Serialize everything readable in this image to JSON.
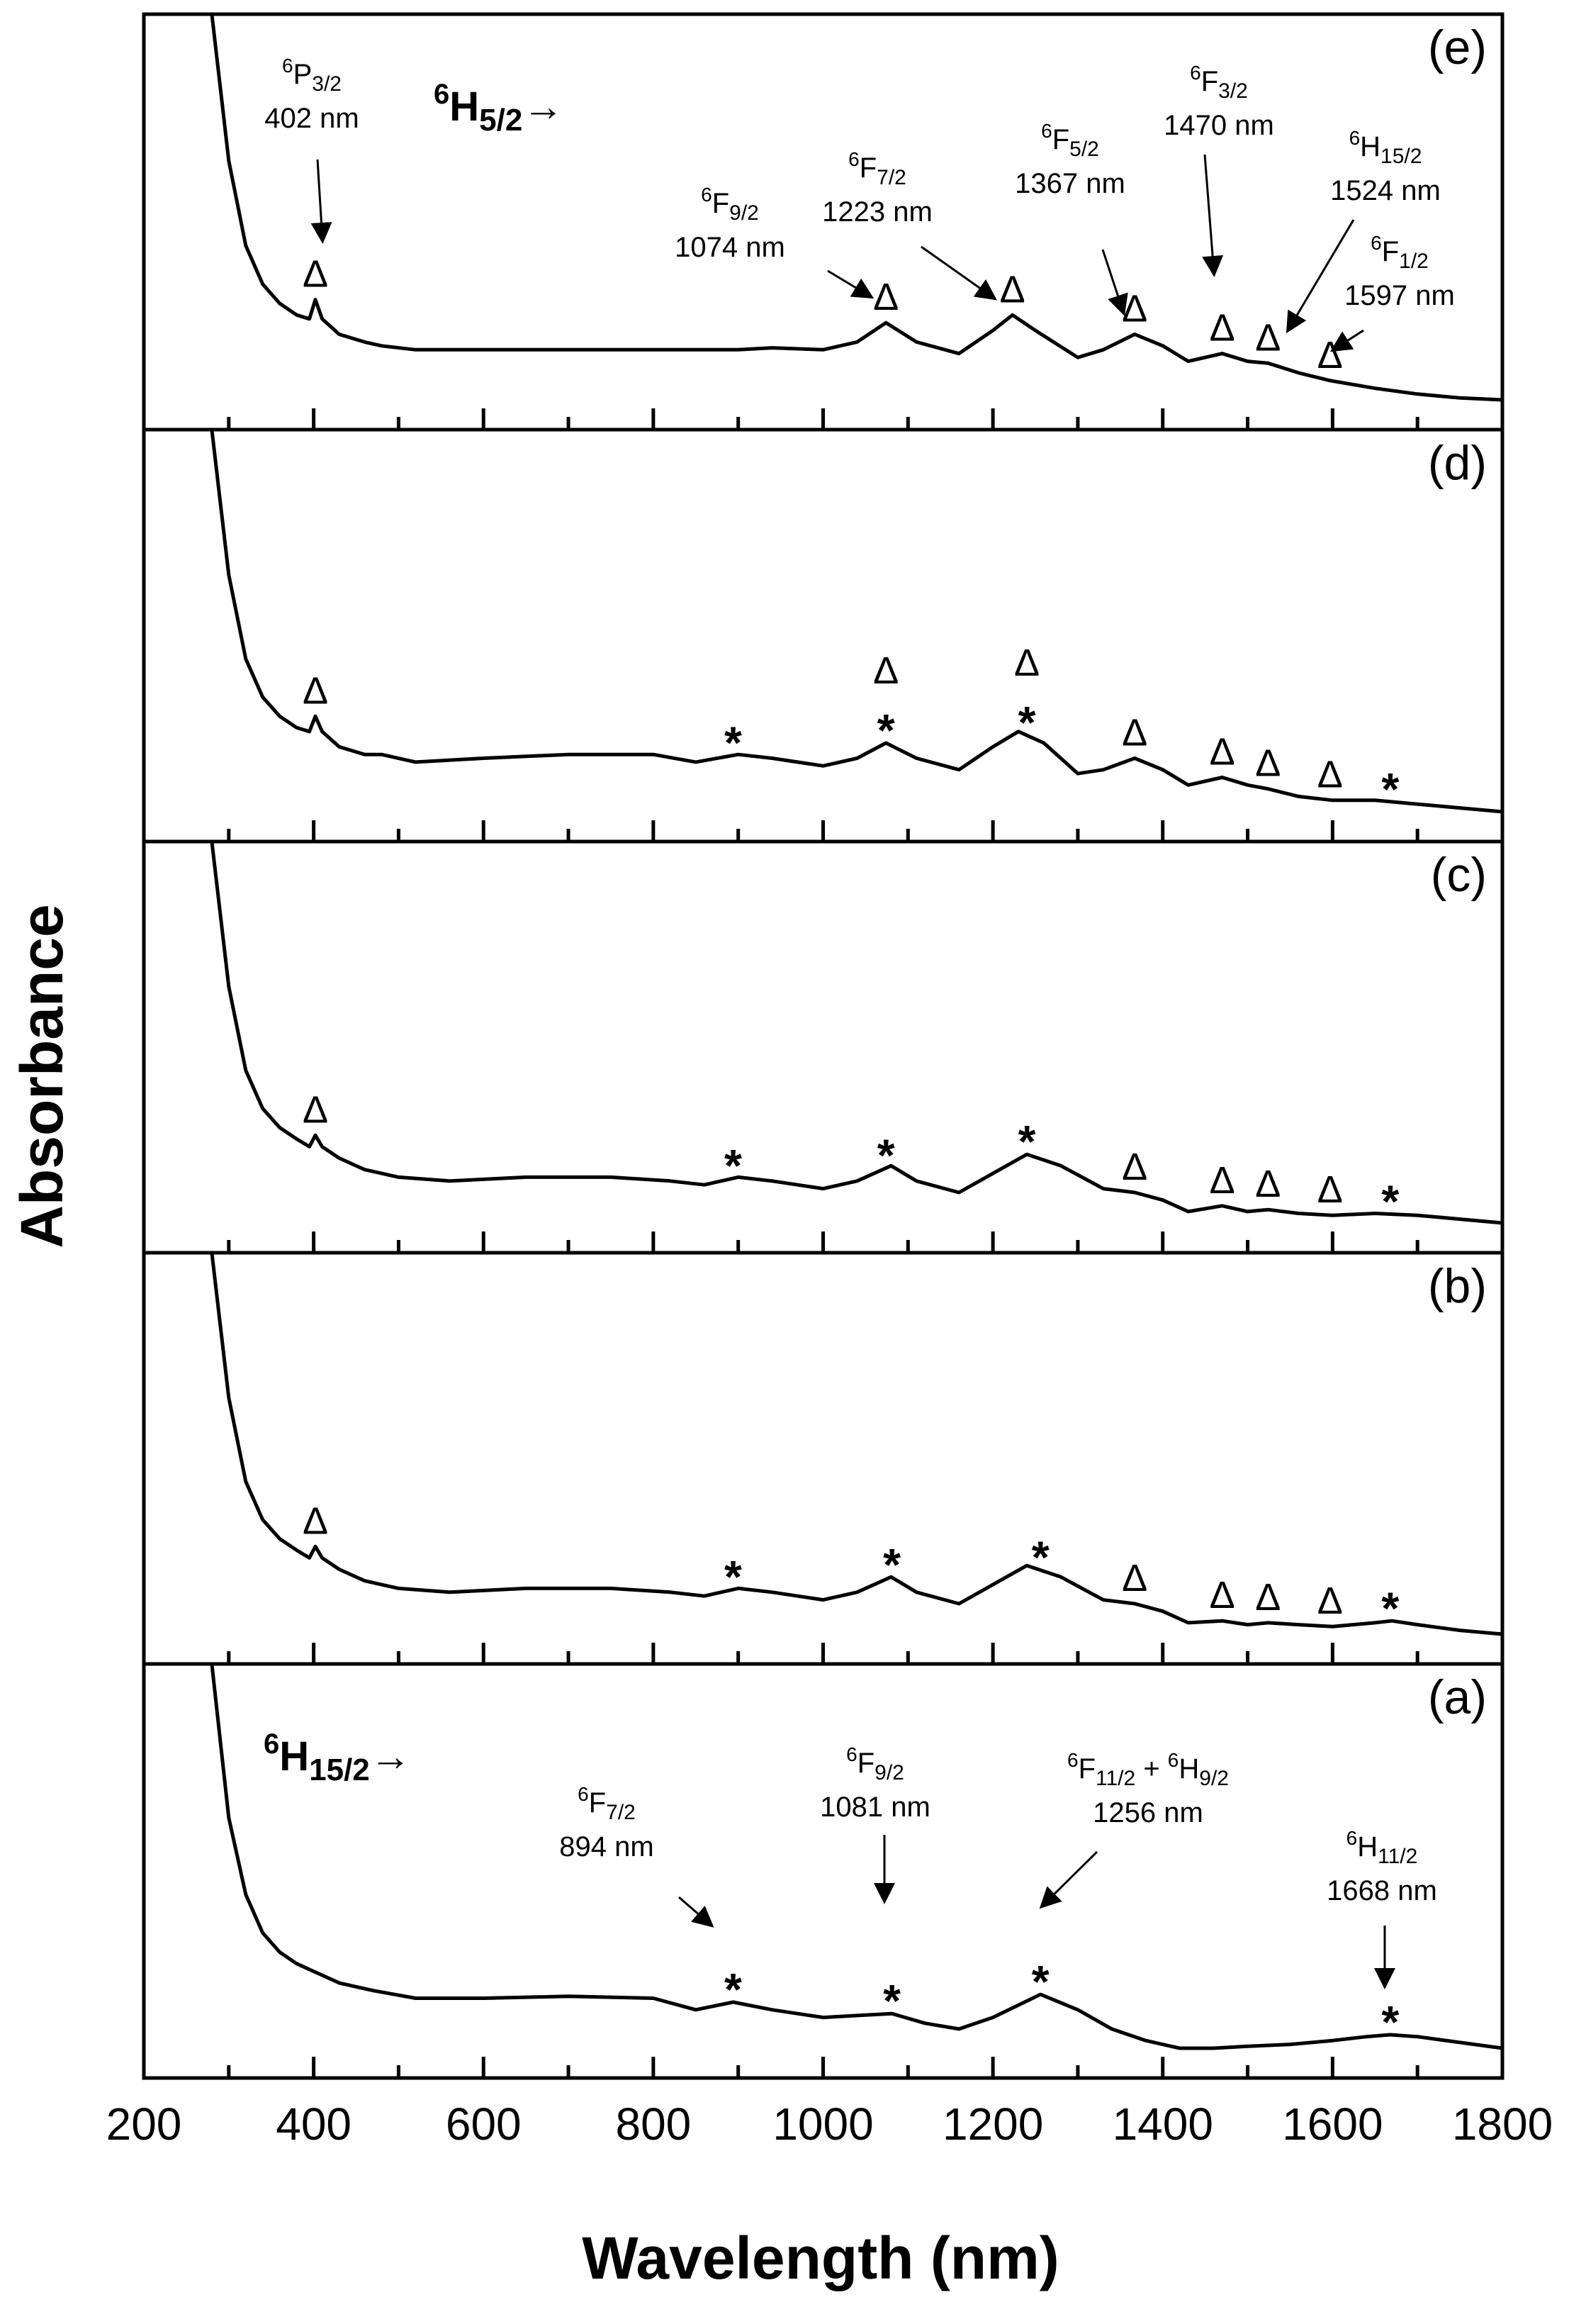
{
  "chart_data": {
    "type": "line",
    "title": "",
    "xlabel": "Wavelength (nm)",
    "ylabel": "Absorbance",
    "xlim": [
      200,
      1800
    ],
    "xticks": [
      200,
      400,
      600,
      800,
      1000,
      1200,
      1400,
      1600,
      1800
    ],
    "minor_ticks_every": 100,
    "grid": false,
    "marker_legend": {
      "triangle": "Δ",
      "star": "*"
    },
    "panels": [
      {
        "id": "e",
        "label": "(e)",
        "series_title": "6H5/2→",
        "series_title_parts": {
          "sup": "6",
          "base": "H",
          "sub": "5/2",
          "arrow": "→"
        },
        "x": [
          280,
          300,
          320,
          340,
          360,
          380,
          395,
          402,
          410,
          430,
          460,
          480,
          520,
          600,
          700,
          800,
          900,
          940,
          1000,
          1040,
          1074,
          1110,
          1160,
          1200,
          1223,
          1250,
          1300,
          1330,
          1367,
          1400,
          1430,
          1470,
          1500,
          1524,
          1560,
          1597,
          1650,
          1700,
          1750,
          1800
        ],
        "values": [
          1.0,
          0.62,
          0.4,
          0.3,
          0.25,
          0.22,
          0.21,
          0.26,
          0.21,
          0.17,
          0.15,
          0.14,
          0.13,
          0.13,
          0.13,
          0.13,
          0.13,
          0.135,
          0.13,
          0.15,
          0.2,
          0.15,
          0.12,
          0.18,
          0.22,
          0.18,
          0.11,
          0.13,
          0.17,
          0.14,
          0.1,
          0.12,
          0.1,
          0.095,
          0.07,
          0.05,
          0.03,
          0.015,
          0.005,
          0.0
        ],
        "ylim": [
          0,
          1
        ],
        "markers": [
          {
            "symbol": "triangle",
            "x": 402
          },
          {
            "symbol": "triangle",
            "x": 1074
          },
          {
            "symbol": "triangle",
            "x": 1223
          },
          {
            "symbol": "triangle",
            "x": 1367
          },
          {
            "symbol": "triangle",
            "x": 1470
          },
          {
            "symbol": "triangle",
            "x": 1524
          },
          {
            "symbol": "triangle",
            "x": 1597
          }
        ],
        "annotations": [
          {
            "sup": "6",
            "base": "P",
            "sub": "3/2",
            "nm": "402 nm",
            "x": 402
          },
          {
            "sup": "6",
            "base": "F",
            "sub": "9/2",
            "nm": "1074 nm",
            "x": 1074
          },
          {
            "sup": "6",
            "base": "F",
            "sub": "7/2",
            "nm": "1223 nm",
            "x": 1223
          },
          {
            "sup": "6",
            "base": "F",
            "sub": "5/2",
            "nm": "1367 nm",
            "x": 1367
          },
          {
            "sup": "6",
            "base": "F",
            "sub": "3/2",
            "nm": "1470 nm",
            "x": 1470
          },
          {
            "sup": "6",
            "base": "H",
            "sub": "15/2",
            "nm": "1524 nm",
            "x": 1524
          },
          {
            "sup": "6",
            "base": "F",
            "sub": "1/2",
            "nm": "1597 nm",
            "x": 1597
          }
        ]
      },
      {
        "id": "d",
        "label": "(d)",
        "x": [
          280,
          300,
          320,
          340,
          360,
          380,
          395,
          402,
          410,
          430,
          460,
          480,
          520,
          600,
          700,
          800,
          850,
          900,
          940,
          1000,
          1040,
          1074,
          1110,
          1160,
          1200,
          1230,
          1260,
          1300,
          1330,
          1367,
          1400,
          1430,
          1470,
          1500,
          1524,
          1560,
          1600,
          1650,
          1700,
          1750,
          1800
        ],
        "values": [
          1.0,
          0.62,
          0.4,
          0.3,
          0.25,
          0.22,
          0.21,
          0.25,
          0.21,
          0.17,
          0.15,
          0.15,
          0.13,
          0.14,
          0.15,
          0.15,
          0.13,
          0.15,
          0.14,
          0.12,
          0.14,
          0.18,
          0.14,
          0.11,
          0.17,
          0.21,
          0.18,
          0.1,
          0.11,
          0.14,
          0.11,
          0.07,
          0.09,
          0.07,
          0.06,
          0.04,
          0.03,
          0.03,
          0.02,
          0.01,
          0.0
        ],
        "ylim": [
          0,
          1
        ],
        "markers": [
          {
            "symbol": "triangle",
            "x": 402
          },
          {
            "symbol": "star",
            "x": 894
          },
          {
            "symbol": "triangle",
            "x": 1074
          },
          {
            "symbol": "star",
            "x": 1074
          },
          {
            "symbol": "triangle",
            "x": 1240
          },
          {
            "symbol": "star",
            "x": 1240
          },
          {
            "symbol": "triangle",
            "x": 1367
          },
          {
            "symbol": "triangle",
            "x": 1470
          },
          {
            "symbol": "triangle",
            "x": 1524
          },
          {
            "symbol": "triangle",
            "x": 1597
          },
          {
            "symbol": "star",
            "x": 1668
          }
        ]
      },
      {
        "id": "c",
        "label": "(c)",
        "x": [
          280,
          300,
          320,
          340,
          360,
          380,
          395,
          402,
          410,
          430,
          460,
          500,
          560,
          650,
          750,
          820,
          860,
          900,
          940,
          1000,
          1040,
          1080,
          1110,
          1160,
          1200,
          1240,
          1280,
          1330,
          1367,
          1400,
          1430,
          1470,
          1500,
          1524,
          1560,
          1600,
          1650,
          1700,
          1750,
          1800
        ],
        "values": [
          1.0,
          0.62,
          0.4,
          0.3,
          0.25,
          0.22,
          0.2,
          0.23,
          0.2,
          0.17,
          0.14,
          0.12,
          0.11,
          0.12,
          0.12,
          0.11,
          0.1,
          0.12,
          0.11,
          0.09,
          0.11,
          0.15,
          0.11,
          0.08,
          0.13,
          0.18,
          0.15,
          0.09,
          0.08,
          0.06,
          0.03,
          0.045,
          0.03,
          0.035,
          0.025,
          0.02,
          0.025,
          0.02,
          0.01,
          0.0
        ],
        "ylim": [
          0,
          1
        ],
        "markers": [
          {
            "symbol": "triangle",
            "x": 402
          },
          {
            "symbol": "star",
            "x": 894
          },
          {
            "symbol": "star",
            "x": 1074
          },
          {
            "symbol": "star",
            "x": 1240
          },
          {
            "symbol": "triangle",
            "x": 1367
          },
          {
            "symbol": "triangle",
            "x": 1470
          },
          {
            "symbol": "triangle",
            "x": 1524
          },
          {
            "symbol": "triangle",
            "x": 1597
          },
          {
            "symbol": "star",
            "x": 1668
          }
        ]
      },
      {
        "id": "b",
        "label": "(b)",
        "x": [
          280,
          300,
          320,
          340,
          360,
          380,
          395,
          402,
          410,
          430,
          460,
          500,
          560,
          650,
          750,
          820,
          860,
          900,
          940,
          1000,
          1040,
          1080,
          1110,
          1160,
          1200,
          1240,
          1280,
          1330,
          1367,
          1400,
          1430,
          1470,
          1500,
          1524,
          1560,
          1600,
          1650,
          1670,
          1700,
          1750,
          1800
        ],
        "values": [
          1.0,
          0.62,
          0.4,
          0.3,
          0.25,
          0.22,
          0.2,
          0.23,
          0.2,
          0.17,
          0.14,
          0.12,
          0.11,
          0.12,
          0.12,
          0.11,
          0.1,
          0.12,
          0.11,
          0.09,
          0.11,
          0.15,
          0.11,
          0.08,
          0.13,
          0.18,
          0.15,
          0.09,
          0.08,
          0.06,
          0.03,
          0.035,
          0.025,
          0.03,
          0.025,
          0.02,
          0.03,
          0.035,
          0.025,
          0.01,
          0.0
        ],
        "ylim": [
          0,
          1
        ],
        "markers": [
          {
            "symbol": "triangle",
            "x": 402
          },
          {
            "symbol": "star",
            "x": 894
          },
          {
            "symbol": "star",
            "x": 1081
          },
          {
            "symbol": "star",
            "x": 1256
          },
          {
            "symbol": "triangle",
            "x": 1367
          },
          {
            "symbol": "triangle",
            "x": 1470
          },
          {
            "symbol": "triangle",
            "x": 1524
          },
          {
            "symbol": "triangle",
            "x": 1597
          },
          {
            "symbol": "star",
            "x": 1668
          }
        ]
      },
      {
        "id": "a",
        "label": "(a)",
        "series_title": "6H15/2→",
        "series_title_parts": {
          "sup": "6",
          "base": "H",
          "sub": "15/2",
          "arrow": "→"
        },
        "x": [
          280,
          300,
          320,
          340,
          360,
          380,
          400,
          430,
          470,
          520,
          600,
          700,
          800,
          850,
          894,
          940,
          1000,
          1040,
          1081,
          1120,
          1160,
          1200,
          1256,
          1300,
          1340,
          1380,
          1420,
          1460,
          1500,
          1550,
          1600,
          1640,
          1668,
          1700,
          1750,
          1800
        ],
        "values": [
          1.0,
          0.6,
          0.4,
          0.3,
          0.25,
          0.22,
          0.2,
          0.17,
          0.15,
          0.13,
          0.13,
          0.135,
          0.13,
          0.1,
          0.12,
          0.1,
          0.08,
          0.085,
          0.09,
          0.065,
          0.05,
          0.08,
          0.14,
          0.1,
          0.05,
          0.02,
          0.0,
          0.0,
          0.005,
          0.01,
          0.02,
          0.03,
          0.035,
          0.03,
          0.015,
          0.0
        ],
        "ylim": [
          0,
          1
        ],
        "markers": [
          {
            "symbol": "star",
            "x": 894
          },
          {
            "symbol": "star",
            "x": 1081
          },
          {
            "symbol": "star",
            "x": 1256
          },
          {
            "symbol": "star",
            "x": 1668
          }
        ],
        "annotations": [
          {
            "sup": "6",
            "base": "F",
            "sub": "7/2",
            "nm": "894 nm",
            "x": 894
          },
          {
            "sup": "6",
            "base": "F",
            "sub": "9/2",
            "nm": "1081 nm",
            "x": 1081
          },
          {
            "sup": "6",
            "base": "F",
            "sub": "11/2",
            "extra_sup": "6",
            "extra_base": "H",
            "extra_sub": "9/2",
            "joiner": " + ",
            "nm": "1256 nm",
            "x": 1256
          },
          {
            "sup": "6",
            "base": "H",
            "sub": "11/2",
            "nm": "1668 nm",
            "x": 1668
          }
        ]
      }
    ]
  }
}
